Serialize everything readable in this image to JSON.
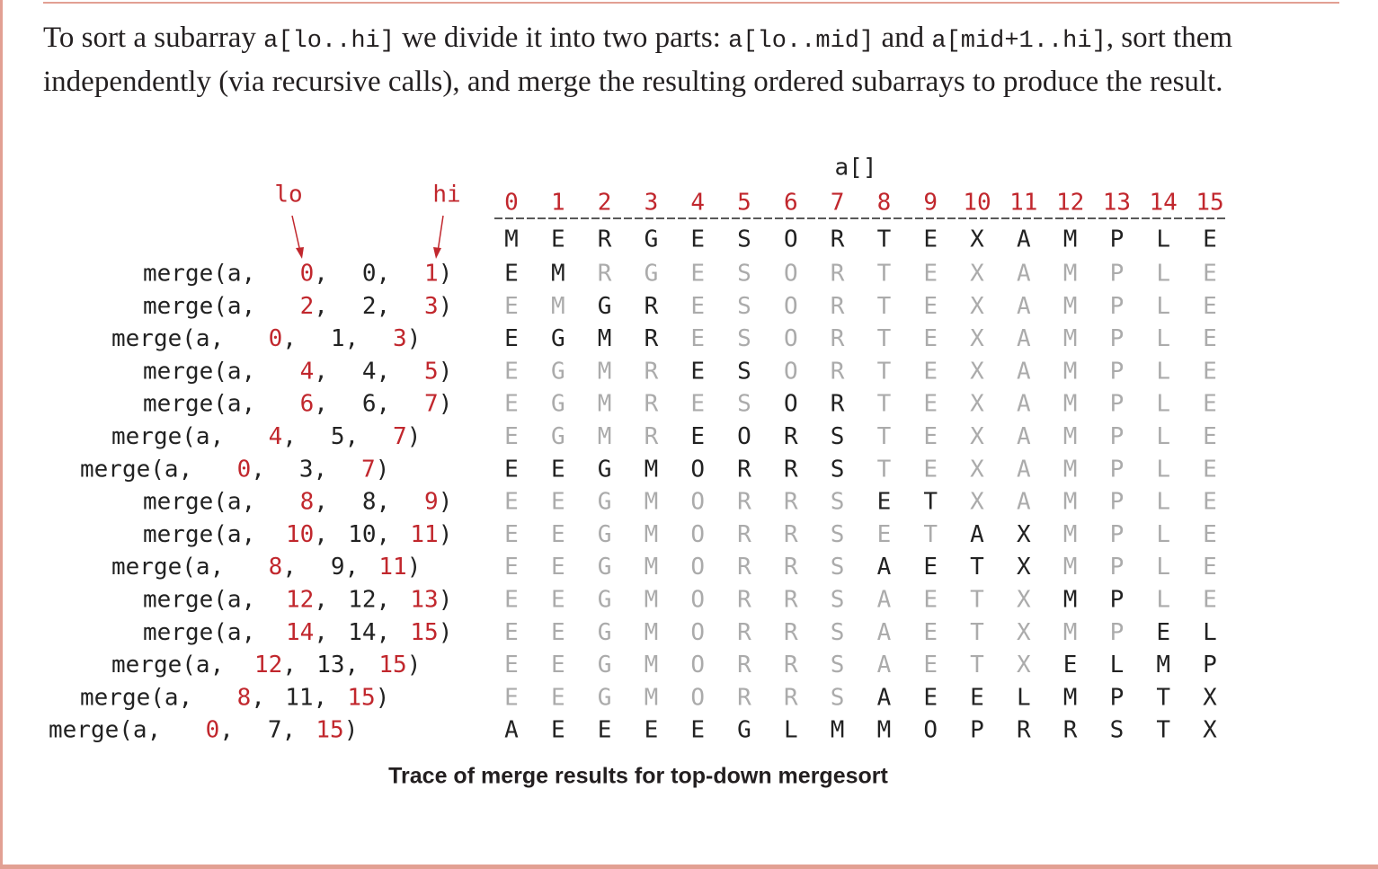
{
  "intro": [
    "To sort a subarray ",
    "a[lo..hi]",
    " we divide it into two parts: ",
    "a[lo..mid]",
    " and ",
    "a[mid+1..hi]",
    ", sort them independently (via recursive calls), and merge the resulting ordered subarrays to produce the result."
  ],
  "trace": {
    "array_label": "a[]",
    "lo_label": "lo",
    "hi_label": "hi",
    "indices": [
      0,
      1,
      2,
      3,
      4,
      5,
      6,
      7,
      8,
      9,
      10,
      11,
      12,
      13,
      14,
      15
    ],
    "initial": [
      "M",
      "E",
      "R",
      "G",
      "E",
      "S",
      "O",
      "R",
      "T",
      "E",
      "X",
      "A",
      "M",
      "P",
      "L",
      "E"
    ],
    "call": {
      "prefix": "merge(a,",
      "sep": ",",
      "close": ")"
    },
    "rows": [
      {
        "lo": 0,
        "mid": 0,
        "hi": 1,
        "result": [
          "E",
          "M",
          "R",
          "G",
          "E",
          "S",
          "O",
          "R",
          "T",
          "E",
          "X",
          "A",
          "M",
          "P",
          "L",
          "E"
        ]
      },
      {
        "lo": 2,
        "mid": 2,
        "hi": 3,
        "result": [
          "E",
          "M",
          "G",
          "R",
          "E",
          "S",
          "O",
          "R",
          "T",
          "E",
          "X",
          "A",
          "M",
          "P",
          "L",
          "E"
        ]
      },
      {
        "lo": 0,
        "mid": 1,
        "hi": 3,
        "result": [
          "E",
          "G",
          "M",
          "R",
          "E",
          "S",
          "O",
          "R",
          "T",
          "E",
          "X",
          "A",
          "M",
          "P",
          "L",
          "E"
        ]
      },
      {
        "lo": 4,
        "mid": 4,
        "hi": 5,
        "result": [
          "E",
          "G",
          "M",
          "R",
          "E",
          "S",
          "O",
          "R",
          "T",
          "E",
          "X",
          "A",
          "M",
          "P",
          "L",
          "E"
        ]
      },
      {
        "lo": 6,
        "mid": 6,
        "hi": 7,
        "result": [
          "E",
          "G",
          "M",
          "R",
          "E",
          "S",
          "O",
          "R",
          "T",
          "E",
          "X",
          "A",
          "M",
          "P",
          "L",
          "E"
        ]
      },
      {
        "lo": 4,
        "mid": 5,
        "hi": 7,
        "result": [
          "E",
          "G",
          "M",
          "R",
          "E",
          "O",
          "R",
          "S",
          "T",
          "E",
          "X",
          "A",
          "M",
          "P",
          "L",
          "E"
        ]
      },
      {
        "lo": 0,
        "mid": 3,
        "hi": 7,
        "result": [
          "E",
          "E",
          "G",
          "M",
          "O",
          "R",
          "R",
          "S",
          "T",
          "E",
          "X",
          "A",
          "M",
          "P",
          "L",
          "E"
        ]
      },
      {
        "lo": 8,
        "mid": 8,
        "hi": 9,
        "result": [
          "E",
          "E",
          "G",
          "M",
          "O",
          "R",
          "R",
          "S",
          "E",
          "T",
          "X",
          "A",
          "M",
          "P",
          "L",
          "E"
        ]
      },
      {
        "lo": 10,
        "mid": 10,
        "hi": 11,
        "result": [
          "E",
          "E",
          "G",
          "M",
          "O",
          "R",
          "R",
          "S",
          "E",
          "T",
          "A",
          "X",
          "M",
          "P",
          "L",
          "E"
        ]
      },
      {
        "lo": 8,
        "mid": 9,
        "hi": 11,
        "result": [
          "E",
          "E",
          "G",
          "M",
          "O",
          "R",
          "R",
          "S",
          "A",
          "E",
          "T",
          "X",
          "M",
          "P",
          "L",
          "E"
        ]
      },
      {
        "lo": 12,
        "mid": 12,
        "hi": 13,
        "result": [
          "E",
          "E",
          "G",
          "M",
          "O",
          "R",
          "R",
          "S",
          "A",
          "E",
          "T",
          "X",
          "M",
          "P",
          "L",
          "E"
        ]
      },
      {
        "lo": 14,
        "mid": 14,
        "hi": 15,
        "result": [
          "E",
          "E",
          "G",
          "M",
          "O",
          "R",
          "R",
          "S",
          "A",
          "E",
          "T",
          "X",
          "M",
          "P",
          "E",
          "L"
        ]
      },
      {
        "lo": 12,
        "mid": 13,
        "hi": 15,
        "result": [
          "E",
          "E",
          "G",
          "M",
          "O",
          "R",
          "R",
          "S",
          "A",
          "E",
          "T",
          "X",
          "E",
          "L",
          "M",
          "P"
        ]
      },
      {
        "lo": 8,
        "mid": 11,
        "hi": 15,
        "result": [
          "E",
          "E",
          "G",
          "M",
          "O",
          "R",
          "R",
          "S",
          "A",
          "E",
          "E",
          "L",
          "M",
          "P",
          "T",
          "X"
        ]
      },
      {
        "lo": 0,
        "mid": 7,
        "hi": 15,
        "result": [
          "A",
          "E",
          "E",
          "E",
          "E",
          "G",
          "L",
          "M",
          "M",
          "O",
          "P",
          "R",
          "R",
          "S",
          "T",
          "X"
        ]
      }
    ],
    "caption": "Trace of merge results for top-down mergesort"
  }
}
